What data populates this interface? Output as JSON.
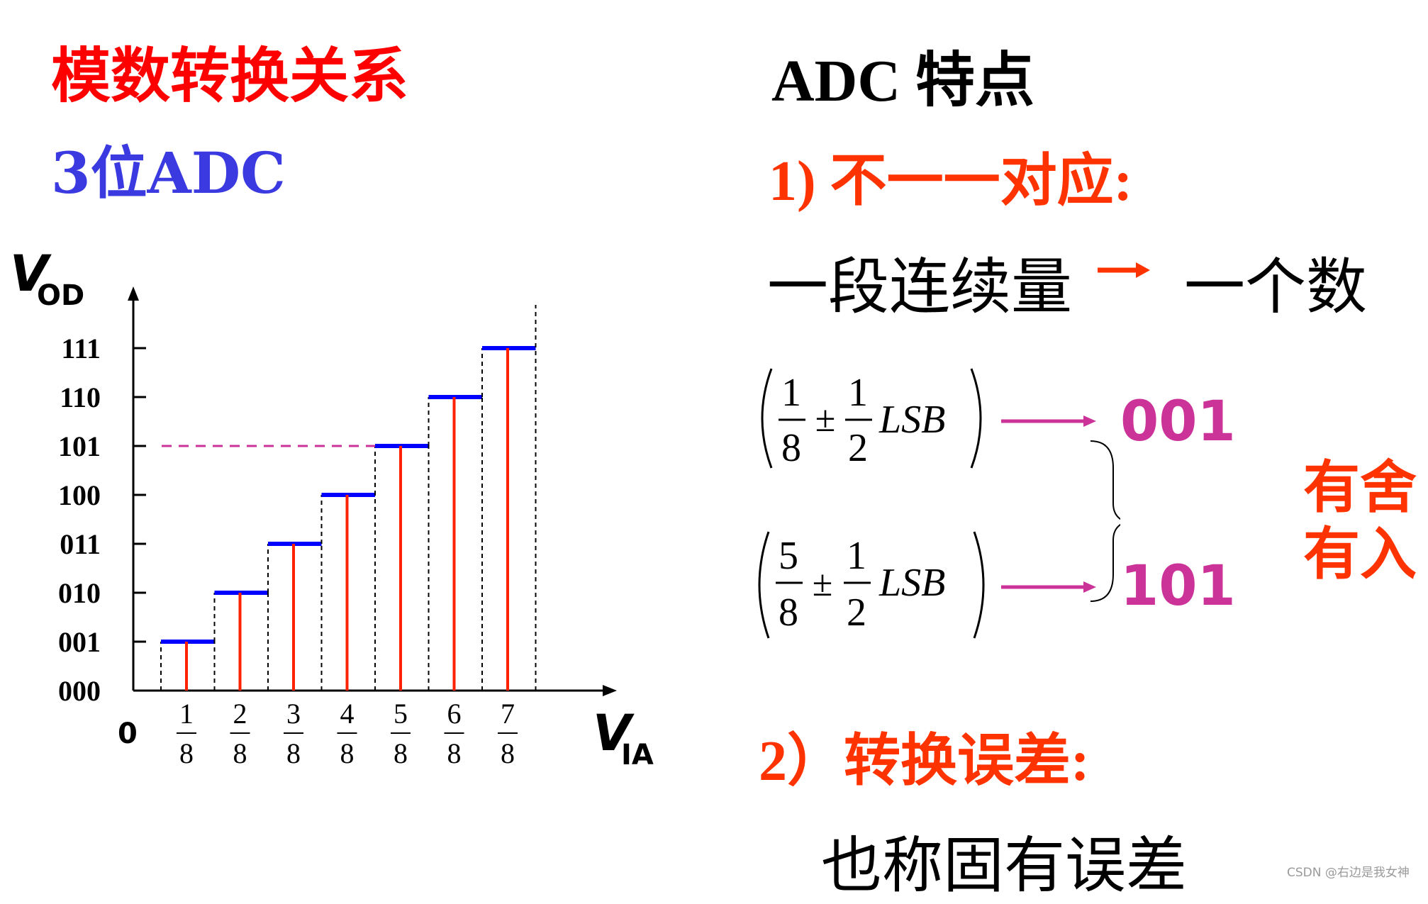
{
  "left": {
    "title": "模数转换关系",
    "subtitle": "3位ADC"
  },
  "chart_data": {
    "type": "step",
    "y_axis": {
      "symbol": "V",
      "subscript": "OD"
    },
    "x_axis": {
      "symbol": "V",
      "subscript": "IA",
      "origin": "0"
    },
    "y_ticks": [
      "000",
      "001",
      "010",
      "011",
      "100",
      "101",
      "110",
      "111"
    ],
    "x_ticks": [
      {
        "num": "1",
        "den": "8"
      },
      {
        "num": "2",
        "den": "8"
      },
      {
        "num": "3",
        "den": "8"
      },
      {
        "num": "4",
        "den": "8"
      },
      {
        "num": "5",
        "den": "8"
      },
      {
        "num": "6",
        "den": "8"
      },
      {
        "num": "7",
        "den": "8"
      }
    ],
    "x": [
      0.125,
      0.25,
      0.375,
      0.5,
      0.625,
      0.75,
      0.875
    ],
    "levels": [
      1,
      2,
      3,
      4,
      5,
      6,
      7
    ],
    "highlight_level": 5,
    "colors": {
      "step": "#0000ff",
      "sample": "#ff2200",
      "highlight": "#cc3399",
      "axis": "#000000"
    }
  },
  "right": {
    "title": "ADC  特点",
    "point1": "1) 不一一对应:",
    "mapping_left": "一段连续量",
    "mapping_right": "一个数",
    "formula1": {
      "num": "1",
      "den": "8",
      "pm": "±",
      "half_num": "1",
      "half_den": "2",
      "unit": "LSB",
      "code": "001"
    },
    "formula2": {
      "num": "5",
      "den": "8",
      "pm": "±",
      "half_num": "1",
      "half_den": "2",
      "unit": "LSB",
      "code": "101"
    },
    "rounding_line1": "有舍",
    "rounding_line2": "有入",
    "point2": "2）转换误差:",
    "note": "也称固有误差"
  },
  "watermark": "CSDN @右边是我女神",
  "colors": {
    "red": "#ff0000",
    "orange_red": "#ff3300",
    "blue": "#3a3ae0",
    "magenta": "#cc3399"
  }
}
